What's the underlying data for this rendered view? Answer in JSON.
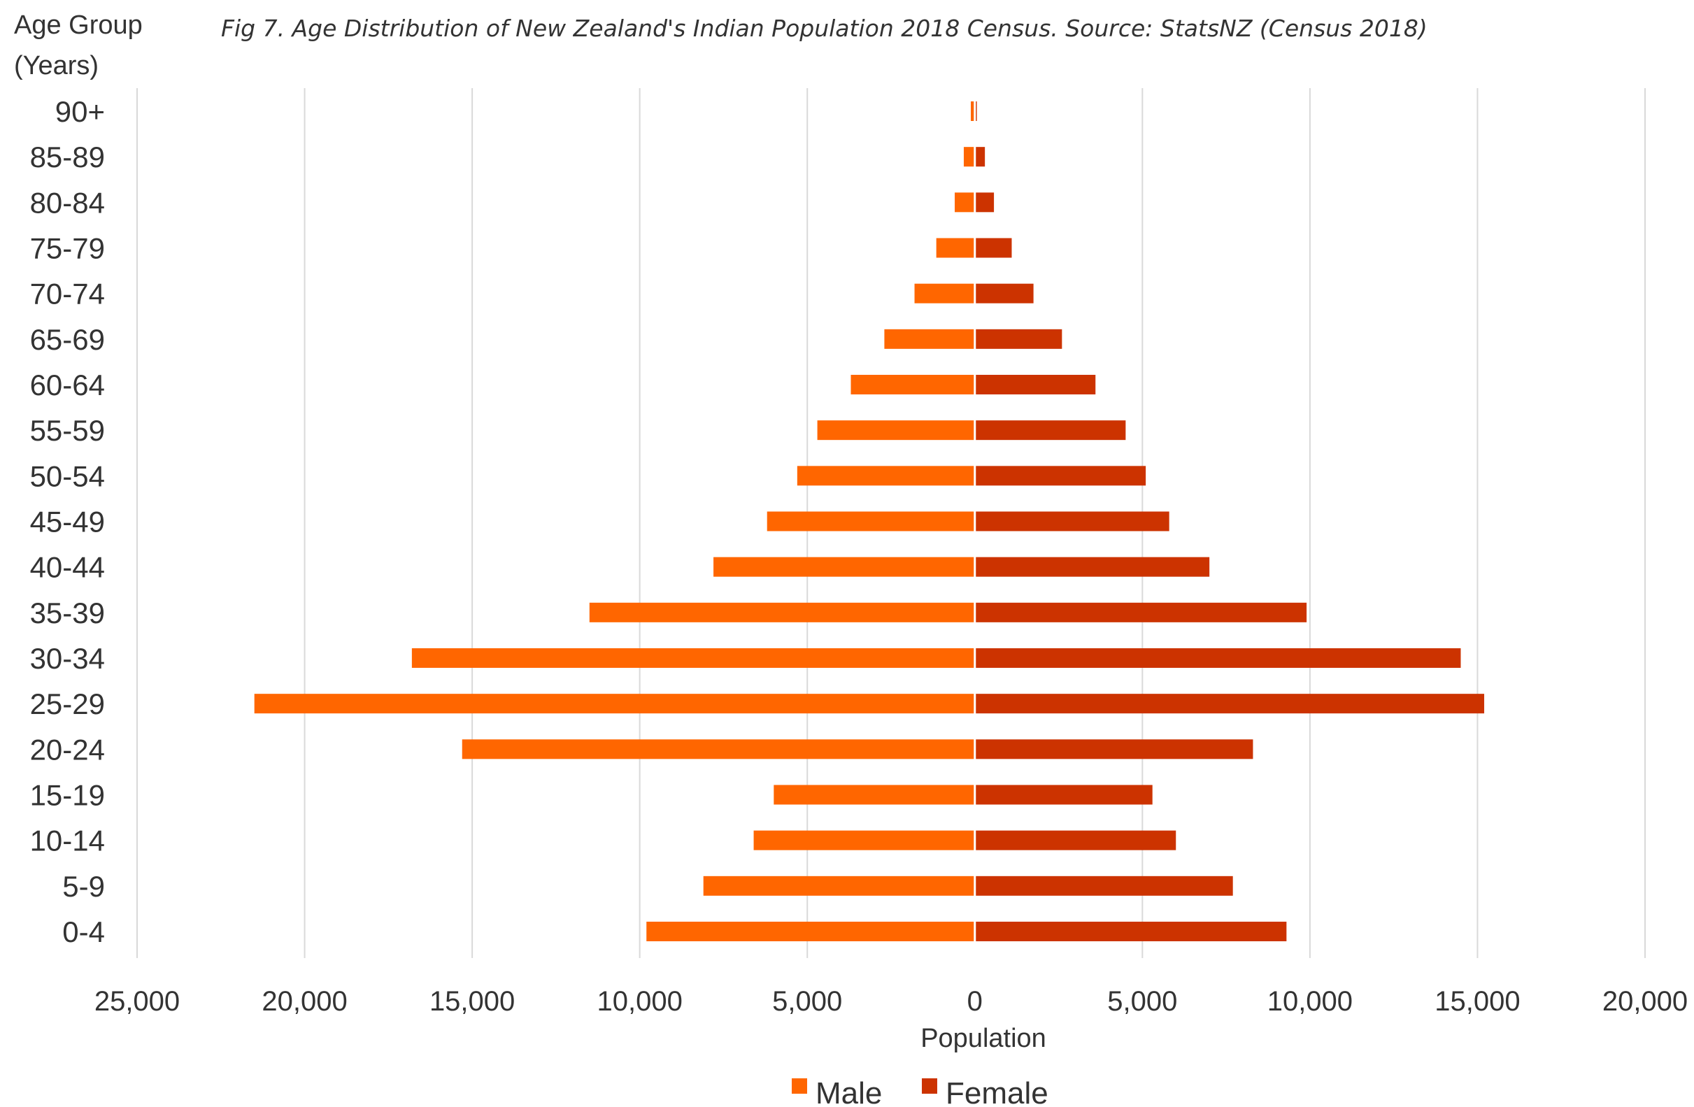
{
  "chart_data": {
    "type": "bar",
    "orientation": "horizontal",
    "layout": "population-pyramid",
    "subtitle": "Fig 7. Age Distribution  of New Zealand's Indian Population  2018 Census. Source: StatsNZ (Census 2018)",
    "y_axis_title_line1": "Age Group",
    "y_axis_title_line2": "(Years)",
    "xlabel": "Population",
    "xlim": [
      -25000,
      20000
    ],
    "x_ticks": [
      -25000,
      -20000,
      -15000,
      -10000,
      -5000,
      0,
      5000,
      10000,
      15000,
      20000
    ],
    "x_tick_labels": [
      "25,000",
      "20,000",
      "15,000",
      "10,000",
      "5,000",
      "0",
      "5,000",
      "10,000",
      "15,000",
      "20,000"
    ],
    "grid": "vertical",
    "legend_position": "bottom",
    "categories": [
      "0-4",
      "5-9",
      "10-14",
      "15-19",
      "20-24",
      "25-29",
      "30-34",
      "35-39",
      "40-44",
      "45-49",
      "50-54",
      "55-59",
      "60-64",
      "65-69",
      "70-74",
      "75-79",
      "80-84",
      "85-89",
      "90+"
    ],
    "series": [
      {
        "name": "Male",
        "color": "#FF6600",
        "side": "left",
        "values": [
          9800,
          8100,
          6600,
          6000,
          15300,
          21500,
          16800,
          11500,
          7800,
          6200,
          5300,
          4700,
          3700,
          2700,
          1800,
          1150,
          600,
          330,
          120
        ]
      },
      {
        "name": "Female",
        "color": "#CC3300",
        "side": "right",
        "values": [
          9300,
          7700,
          6000,
          5300,
          8300,
          15200,
          14500,
          9900,
          7000,
          5800,
          5100,
          4500,
          3600,
          2600,
          1750,
          1100,
          570,
          300,
          60
        ]
      }
    ]
  }
}
